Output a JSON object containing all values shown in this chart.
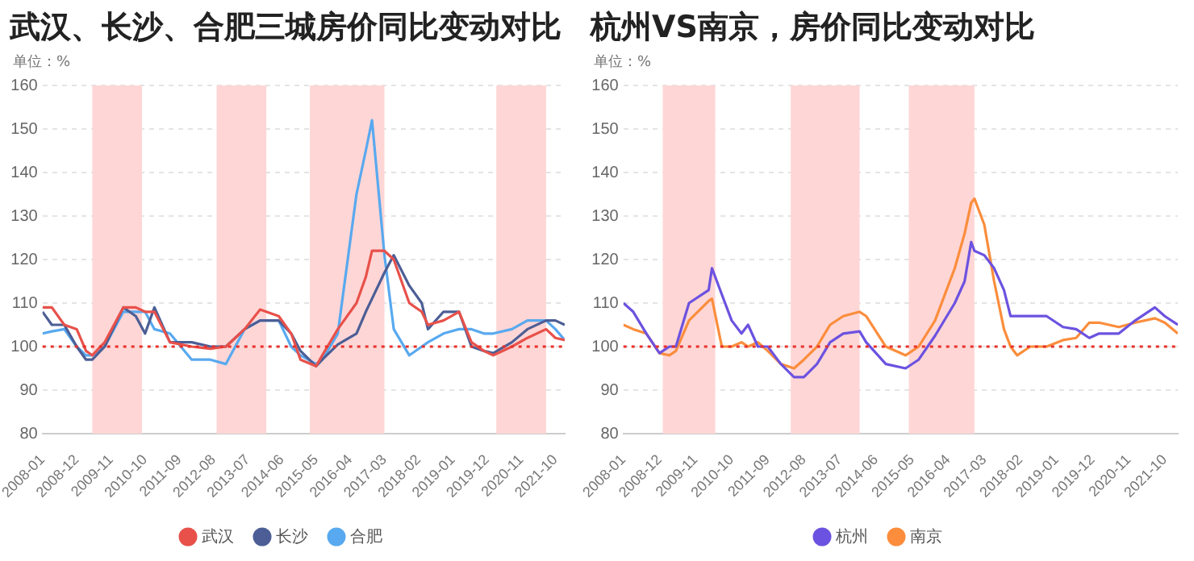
{
  "chart_data": [
    {
      "type": "line",
      "title": "武汉、长沙、合肥三城房价同比变动对比",
      "ylabel": "单位：%",
      "x": [
        "2008-01",
        "2008-04",
        "2008-08",
        "2008-12",
        "2009-03",
        "2009-05",
        "2009-09",
        "2010-03",
        "2010-07",
        "2010-10",
        "2011-01",
        "2011-06",
        "2012-01",
        "2012-07",
        "2012-12",
        "2013-06",
        "2013-11",
        "2014-05",
        "2014-09",
        "2014-12",
        "2015-05",
        "2015-07",
        "2015-12",
        "2016-06",
        "2016-09",
        "2016-11",
        "2017-03",
        "2017-06",
        "2017-11",
        "2018-03",
        "2018-05",
        "2018-10",
        "2019-03",
        "2019-07",
        "2019-11",
        "2020-02",
        "2020-08",
        "2021-01",
        "2021-07",
        "2021-10",
        "2022-01"
      ],
      "series": [
        {
          "name": "武汉",
          "color": "#e8514a",
          "values": [
            109,
            109,
            105,
            104,
            99,
            98,
            101,
            109,
            109,
            108,
            108,
            101,
            100,
            99.5,
            100,
            104,
            108.5,
            107,
            103,
            97,
            95.5,
            98,
            104,
            110,
            116,
            122,
            122,
            120,
            110,
            108,
            105,
            106,
            108,
            101,
            99,
            98,
            100,
            102,
            104,
            102,
            101.5
          ]
        },
        {
          "name": "长沙",
          "color": "#4c5e95",
          "values": [
            108,
            105,
            105,
            100,
            97,
            97,
            100,
            109,
            107,
            103,
            109,
            101,
            101,
            100,
            100,
            104,
            106,
            106,
            103,
            99,
            95.5,
            97,
            100.5,
            103,
            108,
            111,
            117,
            121,
            114,
            110,
            104,
            108,
            108,
            100,
            99,
            98.5,
            101,
            104,
            106,
            106,
            105
          ]
        },
        {
          "name": "合肥",
          "color": "#58a9ef",
          "values": [
            103,
            103.5,
            104,
            100,
            98,
            98,
            100,
            108,
            108,
            108,
            104,
            103,
            97,
            97,
            96,
            104,
            106,
            106,
            100,
            98,
            96,
            97,
            103,
            135,
            145,
            152,
            121,
            104,
            98,
            100,
            101,
            103,
            104,
            104,
            103,
            103,
            104,
            106,
            106,
            104,
            101.5
          ]
        }
      ],
      "xlim": [
        "2008-01",
        "2022-01"
      ],
      "xticks": [
        "2008-01",
        "2008-12",
        "2009-11",
        "2010-10",
        "2011-09",
        "2012-08",
        "2013-07",
        "2014-06",
        "2015-05",
        "2016-04",
        "2017-03",
        "2018-02",
        "2019-01",
        "2019-12",
        "2020-11",
        "2021-10"
      ],
      "ylim": [
        80,
        160
      ],
      "yticks": [
        80,
        90,
        100,
        110,
        120,
        130,
        140,
        150,
        160
      ],
      "bands": [
        {
          "axis": "x",
          "from": "2009-05",
          "to": "2010-09",
          "color": "#ffd6d6"
        },
        {
          "axis": "x",
          "from": "2012-09",
          "to": "2014-01",
          "color": "#ffd6d6"
        },
        {
          "axis": "x",
          "from": "2015-03",
          "to": "2017-03",
          "color": "#ffd6d6"
        },
        {
          "axis": "x",
          "from": "2020-03",
          "to": "2021-07",
          "color": "#ffd6d6"
        }
      ],
      "ref_lines": [
        {
          "axis": "y",
          "value": 100,
          "color": "#e8312a",
          "line_style": "dotted"
        }
      ],
      "grid": "y",
      "legend": "bottom",
      "marker": "none"
    },
    {
      "type": "line",
      "title": "杭州VS南京，房价同比变动对比",
      "ylabel": "单位：%",
      "x": [
        "2008-01",
        "2008-04",
        "2008-08",
        "2008-12",
        "2009-03",
        "2009-05",
        "2009-09",
        "2010-03",
        "2010-04",
        "2010-07",
        "2010-10",
        "2011-01",
        "2011-03",
        "2011-06",
        "2011-09",
        "2012-01",
        "2012-05",
        "2012-08",
        "2012-12",
        "2013-04",
        "2013-08",
        "2014-01",
        "2014-03",
        "2014-09",
        "2015-03",
        "2015-07",
        "2015-12",
        "2016-06",
        "2016-09",
        "2016-11",
        "2016-12",
        "2017-03",
        "2017-06",
        "2017-09",
        "2017-11",
        "2018-01",
        "2018-05",
        "2018-10",
        "2019-03",
        "2019-07",
        "2019-11",
        "2020-02",
        "2020-08",
        "2021-01",
        "2021-07",
        "2021-10",
        "2022-02"
      ],
      "series": [
        {
          "name": "杭州",
          "color": "#6c52e0",
          "values": [
            110,
            108,
            103,
            98.5,
            100,
            100,
            110,
            113,
            118,
            112,
            106,
            103,
            105,
            100,
            100,
            96,
            93,
            93,
            96,
            101,
            103,
            103.5,
            101,
            96,
            95,
            97,
            102.5,
            110,
            115,
            124,
            122,
            121,
            118,
            113,
            107,
            107,
            107,
            107,
            104.5,
            104,
            102,
            103,
            103,
            106,
            109,
            107,
            105
          ]
        },
        {
          "name": "南京",
          "color": "#fb8d3c",
          "values": [
            105,
            104,
            103,
            98.5,
            98,
            99,
            106,
            110.5,
            111,
            100,
            100,
            101,
            100,
            101,
            99,
            96,
            95,
            97,
            100,
            105,
            107,
            108,
            107,
            100,
            98,
            100,
            106,
            118,
            126,
            133,
            134,
            128,
            115,
            104,
            100,
            98,
            100,
            100,
            101.5,
            102,
            105.5,
            105.5,
            104.5,
            105.5,
            106.5,
            105.5,
            103
          ]
        }
      ],
      "xlim": [
        "2008-01",
        "2022-02"
      ],
      "xticks": [
        "2008-01",
        "2008-12",
        "2009-11",
        "2010-10",
        "2011-09",
        "2012-08",
        "2013-07",
        "2014-06",
        "2015-05",
        "2016-04",
        "2017-03",
        "2018-02",
        "2019-01",
        "2019-12",
        "2020-11",
        "2021-10"
      ],
      "ylim": [
        80,
        160
      ],
      "yticks": [
        80,
        90,
        100,
        110,
        120,
        130,
        140,
        150,
        160
      ],
      "bands": [
        {
          "axis": "x",
          "from": "2009-01",
          "to": "2010-05",
          "color": "#ffd6d6"
        },
        {
          "axis": "x",
          "from": "2012-04",
          "to": "2014-01",
          "color": "#ffd6d6"
        },
        {
          "axis": "x",
          "from": "2015-04",
          "to": "2016-12",
          "color": "#ffd6d6"
        }
      ],
      "ref_lines": [
        {
          "axis": "y",
          "value": 100,
          "color": "#e8312a",
          "line_style": "dotted"
        }
      ],
      "grid": "y",
      "legend": "bottom",
      "marker": "none"
    }
  ]
}
